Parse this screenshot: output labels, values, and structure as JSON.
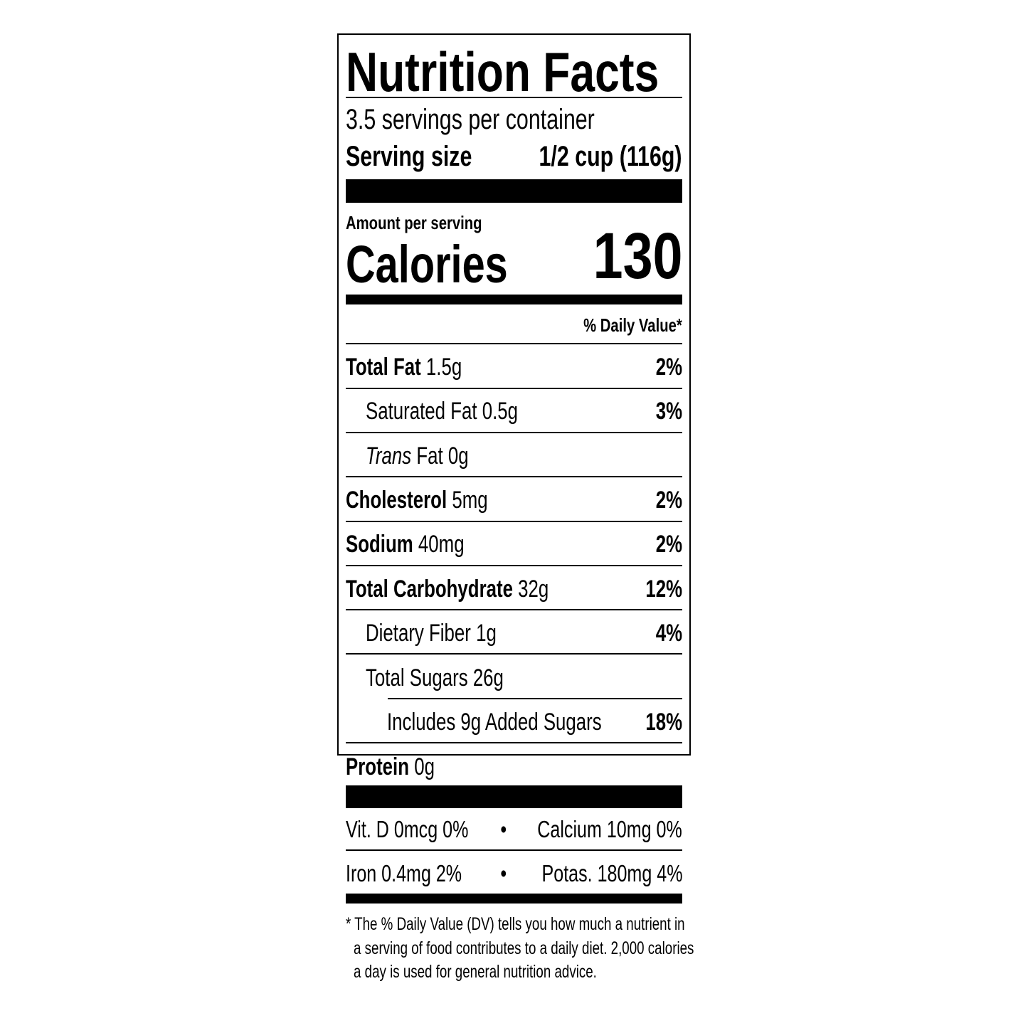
{
  "label": {
    "title": "Nutrition Facts",
    "servings_per_container": "3.5 servings per container",
    "serving_size_label": "Serving size",
    "serving_size_value": "1/2 cup (116g)",
    "amount_per_serving": "Amount per serving",
    "calories_label": "Calories",
    "calories_value": "130",
    "daily_value_header": "% Daily Value*",
    "nutrients": [
      {
        "name": "Total Fat",
        "amount": "1.5g",
        "dv": "2%"
      },
      {
        "name": "Saturated Fat 0.5g",
        "dv": "3%"
      },
      {
        "name_italic": "Trans",
        "name_rest": " Fat 0g"
      },
      {
        "name": "Cholesterol",
        "amount": "5mg",
        "dv": "2%"
      },
      {
        "name": "Sodium",
        "amount": "40mg",
        "dv": "2%"
      },
      {
        "name": "Total Carbohydrate",
        "amount": "32g",
        "dv": "12%"
      },
      {
        "name": "Dietary Fiber 1g",
        "dv": "4%"
      },
      {
        "name": "Total Sugars 26g"
      },
      {
        "name": "Includes 9g Added Sugars",
        "dv": "18%"
      },
      {
        "name": "Protein",
        "amount": "0g"
      }
    ],
    "micronutrients": [
      {
        "left": "Vit. D 0mcg 0%",
        "right": "Calcium 10mg 0%"
      },
      {
        "left": "Iron 0.4mg 2%",
        "right": "Potas. 180mg 4%"
      }
    ],
    "bullet": "•",
    "footnote": [
      "* The % Daily Value (DV) tells you how much a nutrient in",
      "a serving of food contributes to a daily diet. 2,000 calories",
      "a day is used for general nutrition advice."
    ]
  }
}
